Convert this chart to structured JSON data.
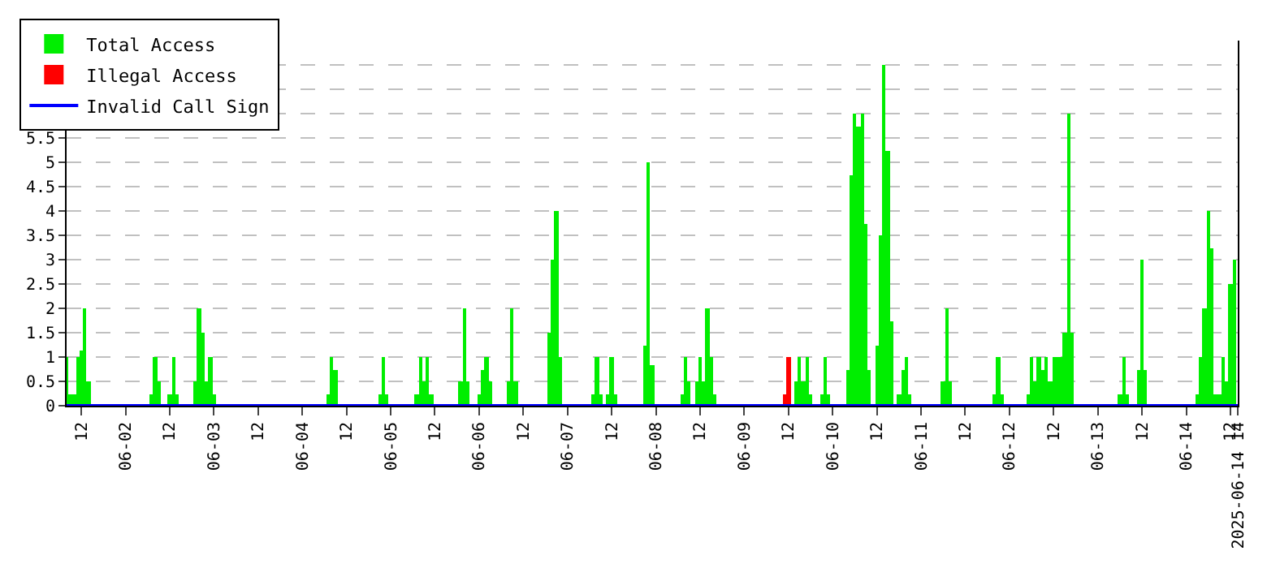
{
  "chart_data": {
    "type": "bar",
    "xlim": [
      "2025-06-01T08:00",
      "2025-06-14T14:00"
    ],
    "xticks": [
      {
        "value": "2025-06-01T12:00",
        "label": "12"
      },
      {
        "value": "2025-06-02T00:00",
        "label": "06-02"
      },
      {
        "value": "2025-06-02T12:00",
        "label": "12"
      },
      {
        "value": "2025-06-03T00:00",
        "label": "06-03"
      },
      {
        "value": "2025-06-03T12:00",
        "label": "12"
      },
      {
        "value": "2025-06-04T00:00",
        "label": "06-04"
      },
      {
        "value": "2025-06-04T12:00",
        "label": "12"
      },
      {
        "value": "2025-06-05T00:00",
        "label": "06-05"
      },
      {
        "value": "2025-06-05T12:00",
        "label": "12"
      },
      {
        "value": "2025-06-06T00:00",
        "label": "06-06"
      },
      {
        "value": "2025-06-06T12:00",
        "label": "12"
      },
      {
        "value": "2025-06-07T00:00",
        "label": "06-07"
      },
      {
        "value": "2025-06-07T12:00",
        "label": "12"
      },
      {
        "value": "2025-06-08T00:00",
        "label": "06-08"
      },
      {
        "value": "2025-06-08T12:00",
        "label": "12"
      },
      {
        "value": "2025-06-09T00:00",
        "label": "06-09"
      },
      {
        "value": "2025-06-09T12:00",
        "label": "12"
      },
      {
        "value": "2025-06-10T00:00",
        "label": "06-10"
      },
      {
        "value": "2025-06-10T12:00",
        "label": "12"
      },
      {
        "value": "2025-06-11T00:00",
        "label": "06-11"
      },
      {
        "value": "2025-06-11T12:00",
        "label": "12"
      },
      {
        "value": "2025-06-12T00:00",
        "label": "06-12"
      },
      {
        "value": "2025-06-12T12:00",
        "label": "12"
      },
      {
        "value": "2025-06-13T00:00",
        "label": "06-13"
      },
      {
        "value": "2025-06-13T12:00",
        "label": "12"
      },
      {
        "value": "2025-06-14T00:00",
        "label": "06-14"
      },
      {
        "value": "2025-06-14T12:00",
        "label": "12"
      },
      {
        "value": "2025-06-14T14:00",
        "label": "2025-06-14 14"
      }
    ],
    "ylim": [
      0,
      7.5
    ],
    "yticks": [
      0,
      0.5,
      1,
      1.5,
      2,
      2.5,
      3,
      3.5,
      4,
      4.5,
      5,
      5.5,
      {
        "value": 6,
        "label": null
      },
      {
        "value": 6.5,
        "label": null
      },
      {
        "value": 7,
        "label": null
      },
      {
        "value": 7.5,
        "label": null
      }
    ],
    "grid": "y",
    "legend": "top left",
    "marker": "none",
    "series": [
      {
        "name": "Total Access",
        "color": "#00ee00",
        "x": [
          "2025-06-01T08:00",
          "2025-06-01T09:00",
          "2025-06-01T10:00",
          "2025-06-01T11:00",
          "2025-06-01T12:00",
          "2025-06-01T13:00",
          "2025-06-01T14:00",
          "2025-06-02T07:00",
          "2025-06-02T08:00",
          "2025-06-02T09:00",
          "2025-06-02T12:00",
          "2025-06-02T13:00",
          "2025-06-02T14:00",
          "2025-06-02T19:00",
          "2025-06-02T20:00",
          "2025-06-02T21:00",
          "2025-06-02T22:00",
          "2025-06-02T23:00",
          "2025-06-03T00:00",
          "2025-06-04T07:00",
          "2025-06-04T08:00",
          "2025-06-04T09:00",
          "2025-06-04T21:00",
          "2025-06-04T22:00",
          "2025-06-04T23:00",
          "2025-06-05T07:00",
          "2025-06-05T08:00",
          "2025-06-05T09:00",
          "2025-06-05T10:00",
          "2025-06-05T11:00",
          "2025-06-05T19:00",
          "2025-06-05T20:00",
          "2025-06-05T21:00",
          "2025-06-06T00:00",
          "2025-06-06T01:00",
          "2025-06-06T02:00",
          "2025-06-06T03:00",
          "2025-06-06T08:00",
          "2025-06-06T09:00",
          "2025-06-06T10:00",
          "2025-06-06T19:00",
          "2025-06-06T20:00",
          "2025-06-06T21:00",
          "2025-06-06T22:00",
          "2025-06-07T07:00",
          "2025-06-07T08:00",
          "2025-06-07T09:00",
          "2025-06-07T11:00",
          "2025-06-07T12:00",
          "2025-06-07T13:00",
          "2025-06-07T21:00",
          "2025-06-07T22:00",
          "2025-06-07T23:00",
          "2025-06-08T07:00",
          "2025-06-08T08:00",
          "2025-06-08T09:00",
          "2025-06-08T11:00",
          "2025-06-08T12:00",
          "2025-06-08T13:00",
          "2025-06-08T14:00",
          "2025-06-08T15:00",
          "2025-06-08T16:00",
          "2025-06-09T14:00",
          "2025-06-09T15:00",
          "2025-06-09T16:00",
          "2025-06-09T17:00",
          "2025-06-09T18:00",
          "2025-06-09T21:00",
          "2025-06-09T22:00",
          "2025-06-09T23:00",
          "2025-06-10T04:00",
          "2025-06-10T05:00",
          "2025-06-10T06:00",
          "2025-06-10T07:00",
          "2025-06-10T08:00",
          "2025-06-10T09:00",
          "2025-06-10T10:00",
          "2025-06-10T12:00",
          "2025-06-10T13:00",
          "2025-06-10T14:00",
          "2025-06-10T15:00",
          "2025-06-10T16:00",
          "2025-06-10T18:00",
          "2025-06-10T19:00",
          "2025-06-10T20:00",
          "2025-06-10T21:00",
          "2025-06-11T06:00",
          "2025-06-11T07:00",
          "2025-06-11T08:00",
          "2025-06-11T20:00",
          "2025-06-11T21:00",
          "2025-06-11T22:00",
          "2025-06-12T05:00",
          "2025-06-12T06:00",
          "2025-06-12T07:00",
          "2025-06-12T08:00",
          "2025-06-12T09:00",
          "2025-06-12T10:00",
          "2025-06-12T11:00",
          "2025-06-12T12:00",
          "2025-06-12T13:00",
          "2025-06-12T14:00",
          "2025-06-12T15:00",
          "2025-06-12T16:00",
          "2025-06-12T17:00",
          "2025-06-13T06:00",
          "2025-06-13T07:00",
          "2025-06-13T08:00",
          "2025-06-13T11:00",
          "2025-06-13T12:00",
          "2025-06-13T13:00",
          "2025-06-14T03:00",
          "2025-06-14T04:00",
          "2025-06-14T05:00",
          "2025-06-14T06:00",
          "2025-06-14T07:00",
          "2025-06-14T08:00",
          "2025-06-14T09:00",
          "2025-06-14T10:00",
          "2025-06-14T11:00",
          "2025-06-14T12:00",
          "2025-06-14T13:00"
        ],
        "values": [
          1,
          0.25,
          0.25,
          1,
          1.15,
          2,
          0.5,
          0.25,
          1,
          0.5,
          0.25,
          1,
          0.25,
          0.5,
          2,
          1.5,
          0.5,
          1,
          0.25,
          0.25,
          1,
          0.75,
          0.25,
          1,
          0.25,
          0.25,
          1,
          0.5,
          1,
          0.25,
          0.5,
          2,
          0.5,
          0.25,
          0.75,
          1,
          0.5,
          0.5,
          2,
          0.5,
          1.5,
          3,
          4,
          1,
          0.25,
          1,
          0.25,
          0.25,
          1,
          0.25,
          1.25,
          5,
          0.85,
          0.25,
          1,
          0.5,
          0.5,
          1,
          0.5,
          2,
          1,
          0.25,
          0.5,
          1,
          0.5,
          1,
          0.25,
          0.25,
          1,
          0.25,
          0.75,
          4.75,
          6,
          5.75,
          6,
          3.75,
          0.75,
          1.25,
          3.5,
          7,
          5.25,
          1.75,
          0.25,
          0.75,
          1,
          0.25,
          0.5,
          2,
          0.5,
          0.25,
          1,
          0.25,
          0.25,
          1,
          0.5,
          1,
          0.75,
          1,
          0.5,
          1,
          1,
          1,
          1.5,
          6,
          1.5,
          0.25,
          1,
          0.25,
          0.75,
          3,
          0.75,
          0.25,
          1,
          2,
          4,
          3.25,
          0.25,
          0.25,
          1,
          0.5,
          2.5,
          3
        ]
      },
      {
        "name": "Illegal Access",
        "type": "bar",
        "color": "#ff0000",
        "x": [
          "2025-06-09T11:00",
          "2025-06-09T12:00"
        ],
        "values": [
          0.25,
          1
        ]
      },
      {
        "name": "Invalid Call Sign",
        "type": "line",
        "color": "#0000ff",
        "x": [
          "2025-06-01T08:00",
          "2025-06-14T14:00"
        ],
        "values": [
          0,
          0
        ]
      }
    ]
  }
}
